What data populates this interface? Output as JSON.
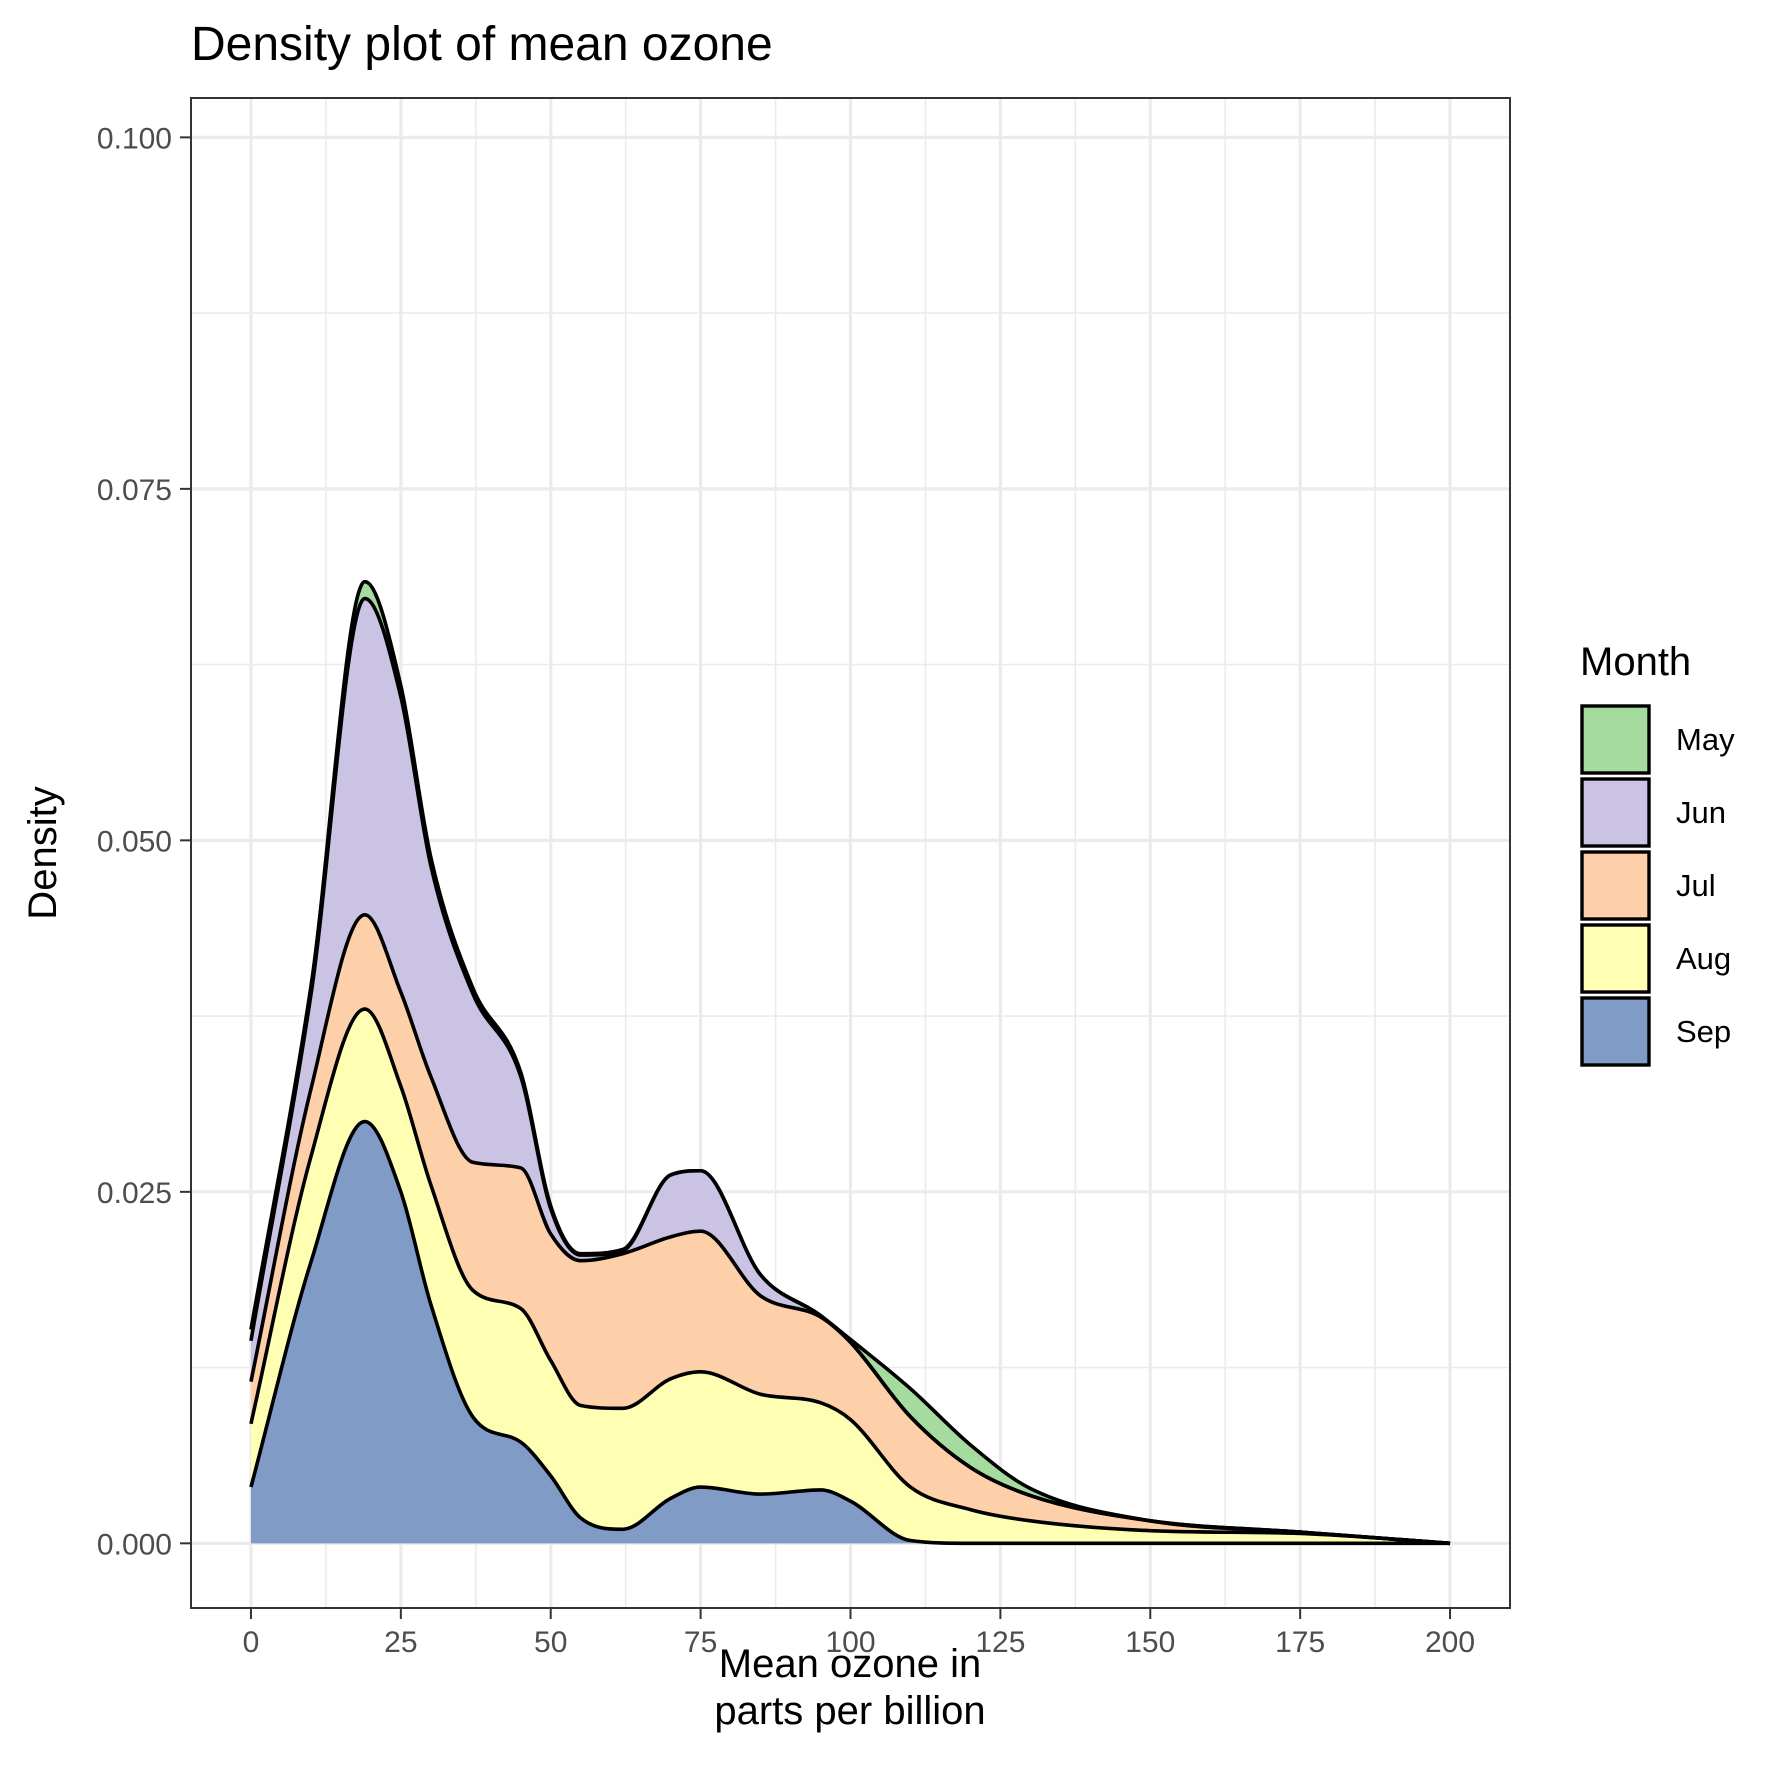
{
  "chart_data": {
    "type": "area",
    "stacked": true,
    "title": "Density plot of mean ozone",
    "xlabel": [
      "Mean ozone in",
      "parts per billion"
    ],
    "ylabel": "Density",
    "xlim": [
      -10,
      210
    ],
    "ylim": [
      -0.0046,
      0.1028
    ],
    "x_ticks": [
      0,
      25,
      50,
      75,
      100,
      125,
      150,
      175,
      200
    ],
    "x_tick_labels": [
      "0",
      "25",
      "50",
      "75",
      "100",
      "125",
      "150",
      "175",
      "200"
    ],
    "y_ticks": [
      0,
      0.025,
      0.05,
      0.075,
      0.1
    ],
    "y_tick_labels": [
      "0.000",
      "0.025",
      "0.050",
      "0.075",
      "0.100"
    ],
    "grid": true,
    "legend": {
      "title": "Month",
      "position": "right"
    },
    "x": [
      0,
      10,
      19,
      25,
      30,
      37,
      45,
      50,
      55,
      62,
      70,
      75,
      85,
      95,
      100,
      110,
      120,
      130,
      150,
      175,
      200
    ],
    "series": [
      {
        "name": "May",
        "color": "#a6dba0",
        "values": [
          0.0008,
          0.0006,
          0.0012,
          0.0008,
          0.0006,
          0.0004,
          0.0003,
          0.0002,
          0.0001,
          0.0001,
          0.0,
          0.0,
          0.0,
          0.0,
          0.0002,
          0.002,
          0.0016,
          0.0005,
          0.0,
          0.0,
          0.0
        ]
      },
      {
        "name": "Jun",
        "color": "#cbc3e3",
        "values": [
          0.0029,
          0.0067,
          0.0225,
          0.021,
          0.015,
          0.012,
          0.0065,
          0.0018,
          0.0004,
          0.0002,
          0.0044,
          0.0043,
          0.0015,
          0.0001,
          0.0,
          0.0,
          0.0,
          0.0,
          0.0,
          0.0,
          0.0
        ]
      },
      {
        "name": "Jul",
        "color": "#fdd0a9",
        "values": [
          0.003,
          0.0048,
          0.0067,
          0.0067,
          0.0077,
          0.0091,
          0.01,
          0.009,
          0.0103,
          0.011,
          0.0101,
          0.01,
          0.007,
          0.0061,
          0.0055,
          0.005,
          0.003,
          0.0018,
          0.0007,
          0.0001,
          0.0
        ]
      },
      {
        "name": "Aug",
        "color": "#ffffb3",
        "values": [
          0.0045,
          0.0075,
          0.008,
          0.0075,
          0.0085,
          0.009,
          0.0095,
          0.0082,
          0.008,
          0.0086,
          0.0085,
          0.0082,
          0.0071,
          0.0062,
          0.0058,
          0.0038,
          0.0024,
          0.0016,
          0.0009,
          0.0007,
          0.0
        ]
      },
      {
        "name": "Sep",
        "color": "#7f9bc6",
        "values": [
          0.004,
          0.02,
          0.03,
          0.025,
          0.017,
          0.009,
          0.0072,
          0.0048,
          0.0018,
          0.001,
          0.0032,
          0.004,
          0.0035,
          0.0038,
          0.003,
          0.0002,
          0.0,
          0.0,
          0.0,
          0.0,
          0.0
        ]
      }
    ]
  }
}
